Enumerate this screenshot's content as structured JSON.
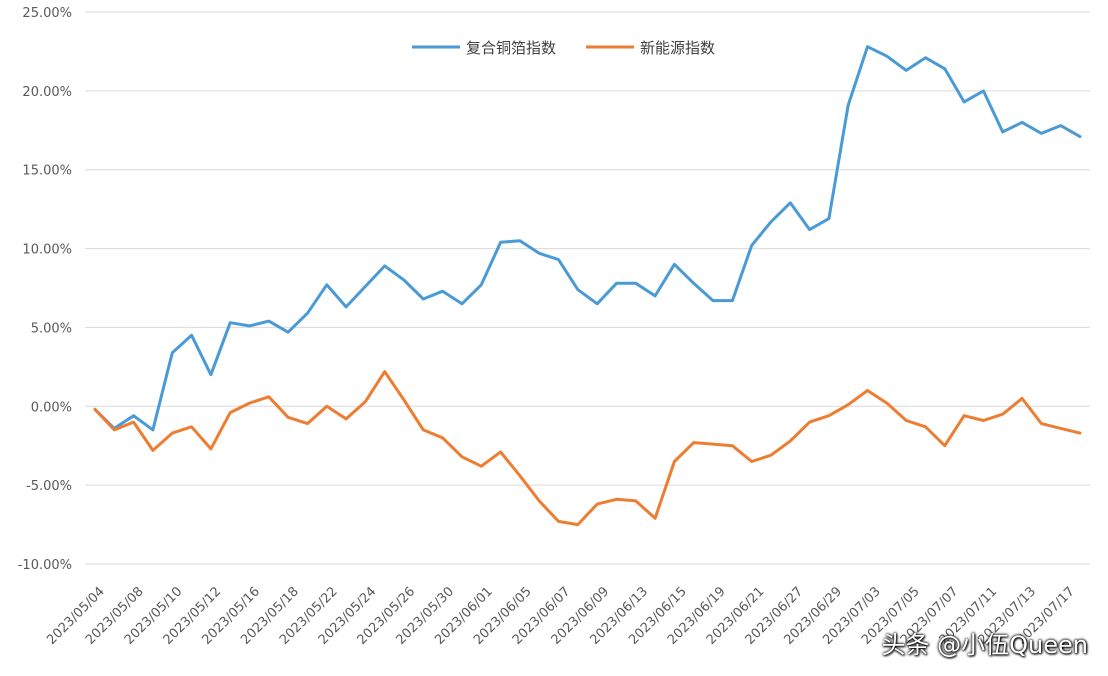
{
  "chart_data": {
    "type": "line",
    "title": "",
    "xlabel": "",
    "ylabel": "",
    "ylim": [
      -10,
      25
    ],
    "y_ticks": [
      "25.00%",
      "20.00%",
      "15.00%",
      "10.00%",
      "5.00%",
      "0.00%",
      "-5.00%",
      "-10.00%"
    ],
    "x_labels": [
      "2023/05/04",
      "2023/05/08",
      "2023/05/10",
      "2023/05/12",
      "2023/05/16",
      "2023/05/18",
      "2023/05/22",
      "2023/05/24",
      "2023/05/26",
      "2023/05/30",
      "2023/06/01",
      "2023/06/05",
      "2023/06/07",
      "2023/06/09",
      "2023/06/13",
      "2023/06/15",
      "2023/06/19",
      "2023/06/21",
      "2023/06/27",
      "2023/06/29",
      "2023/07/03",
      "2023/07/05",
      "2023/07/07",
      "2023/07/11",
      "2023/07/13",
      "2023/07/17"
    ],
    "grid": true,
    "legend_position": "top-center",
    "series": [
      {
        "name": "复合铜箔指数",
        "color": "#4a9ad6",
        "values": [
          -0.2,
          -1.4,
          -0.6,
          -1.5,
          3.4,
          4.5,
          2.0,
          5.3,
          5.1,
          5.4,
          4.7,
          5.9,
          7.7,
          6.3,
          7.6,
          8.9,
          8.0,
          6.8,
          7.3,
          6.5,
          7.7,
          10.4,
          10.5,
          9.7,
          9.3,
          7.4,
          6.5,
          7.8,
          7.8,
          7.0,
          9.0,
          7.8,
          6.7,
          6.7,
          10.2,
          11.7,
          12.9,
          11.2,
          11.9,
          19.1,
          22.8,
          22.2,
          21.3,
          22.1,
          21.4,
          19.3,
          20.0,
          17.4,
          18.0,
          17.3,
          17.8,
          17.1
        ]
      },
      {
        "name": "新能源指数",
        "color": "#ed7d31",
        "values": [
          -0.2,
          -1.5,
          -1.0,
          -2.8,
          -1.7,
          -1.3,
          -2.7,
          -0.4,
          0.2,
          0.6,
          -0.7,
          -1.1,
          0.0,
          -0.8,
          0.3,
          2.2,
          0.4,
          -1.5,
          -2.0,
          -3.2,
          -3.8,
          -2.9,
          -4.4,
          -6.0,
          -7.3,
          -7.5,
          -6.2,
          -5.9,
          -6.0,
          -7.1,
          -3.5,
          -2.3,
          -2.4,
          -2.5,
          -3.5,
          -3.1,
          -2.2,
          -1.0,
          -0.6,
          0.1,
          1.0,
          0.2,
          -0.9,
          -1.3,
          -2.5,
          -0.6,
          -0.9,
          -0.5,
          0.5,
          -1.1,
          -1.4,
          -1.7
        ]
      }
    ]
  },
  "watermark": "头条 @小伍Queen"
}
